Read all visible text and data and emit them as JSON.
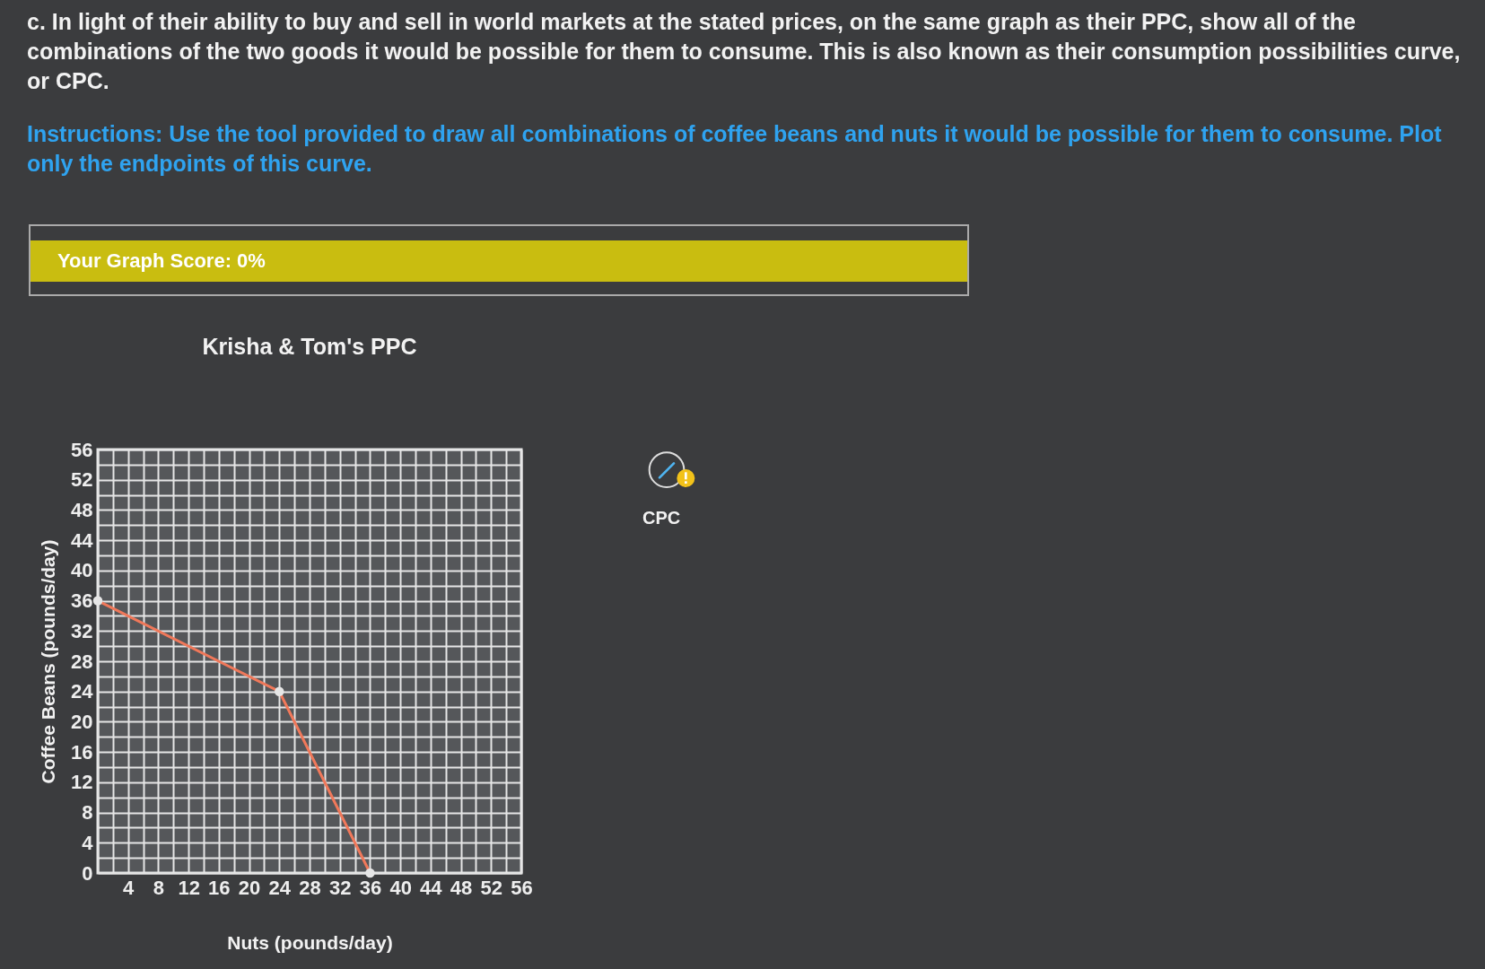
{
  "chart_data": {
    "type": "line",
    "title": "Krisha & Tom's PPC",
    "xlabel": "Nuts (pounds/day)",
    "ylabel": "Coffee Beans (pounds/day)",
    "x": [
      0,
      24,
      36
    ],
    "series": [
      {
        "color": "#f0785a",
        "values": [
          36,
          24,
          0
        ]
      }
    ],
    "xlim": [
      0,
      56
    ],
    "ylim": [
      0,
      56
    ],
    "xticks": [
      {
        "value": 0,
        "label": null
      },
      {
        "value": 2,
        "label": null
      },
      4,
      {
        "value": 6,
        "label": null
      },
      8,
      {
        "value": 10,
        "label": null
      },
      12,
      {
        "value": 14,
        "label": null
      },
      16,
      {
        "value": 18,
        "label": null
      },
      20,
      {
        "value": 22,
        "label": null
      },
      24,
      {
        "value": 26,
        "label": null
      },
      28,
      {
        "value": 30,
        "label": null
      },
      32,
      {
        "value": 34,
        "label": null
      },
      36,
      {
        "value": 38,
        "label": null
      },
      40,
      {
        "value": 42,
        "label": null
      },
      44,
      {
        "value": 46,
        "label": null
      },
      48,
      {
        "value": 50,
        "label": null
      },
      52,
      {
        "value": 54,
        "label": null
      },
      56
    ],
    "yticks": [
      0,
      {
        "value": 2,
        "label": null
      },
      4,
      {
        "value": 6,
        "label": null
      },
      8,
      {
        "value": 10,
        "label": null
      },
      12,
      {
        "value": 14,
        "label": null
      },
      16,
      {
        "value": 18,
        "label": null
      },
      20,
      {
        "value": 22,
        "label": null
      },
      24,
      {
        "value": 26,
        "label": null
      },
      28,
      {
        "value": 30,
        "label": null
      },
      32,
      {
        "value": 34,
        "label": null
      },
      36,
      {
        "value": 38,
        "label": null
      },
      40,
      {
        "value": 42,
        "label": null
      },
      44,
      {
        "value": 46,
        "label": null
      },
      48,
      {
        "value": 50,
        "label": null
      },
      52,
      {
        "value": 54,
        "label": null
      },
      56
    ],
    "grid": true,
    "marker": "circle",
    "line_style": "solid",
    "annotations": [
      "c. In light of their ability to buy and sell in world markets at the stated prices, on the same graph as their PPC, show all of the combinations of the two goods it would be possible for them to consume. This is also known as their consumption possibilities curve, or CPC.",
      "Instructions: Use the tool provided to draw all combinations of coffee beans and nuts it would be possible for them to consume. Plot only the endpoints of this curve.",
      "Your Graph Score: 0%",
      "CPC"
    ]
  }
}
